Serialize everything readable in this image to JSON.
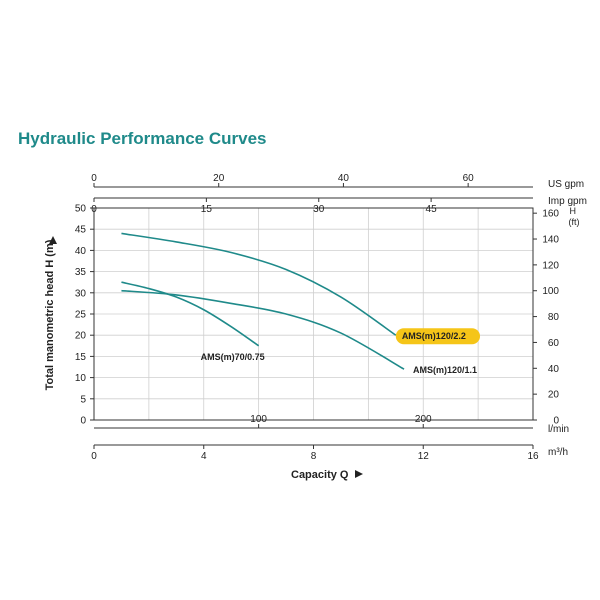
{
  "title": "Hydraulic Performance Curves",
  "colors": {
    "curve": "#1f8a8a",
    "highlight": "#f5c518",
    "grid": "#cfcfcf",
    "axis": "#333333"
  },
  "chart_data": {
    "type": "line",
    "title": "Hydraulic Performance Curves",
    "xlabel": "Capacity Q",
    "ylabel": "Total manometric head H (m)",
    "grid": true,
    "axes": {
      "m3h": {
        "label": "m³/h",
        "ticks": [
          0,
          4,
          8,
          12,
          16
        ],
        "range": [
          0,
          16
        ]
      },
      "lmin": {
        "label": "l/min",
        "ticks": [
          100,
          200
        ],
        "range": [
          0,
          266.67
        ]
      },
      "usgpm": {
        "label": "US gpm",
        "ticks": [
          0,
          20,
          40,
          60
        ],
        "range": [
          0,
          70.4
        ]
      },
      "impgpm": {
        "label": "Imp gpm",
        "ticks": [
          0,
          15,
          30,
          45
        ],
        "range": [
          0,
          58.6
        ]
      },
      "head_m": {
        "label": "",
        "ticks": [
          0,
          5,
          10,
          15,
          20,
          25,
          30,
          35,
          40,
          45,
          50
        ],
        "range": [
          0,
          50
        ]
      },
      "head_ft": {
        "label": "H\n(ft)",
        "label_lines": [
          "H",
          "(ft)"
        ],
        "ticks": [
          0,
          20,
          40,
          60,
          80,
          100,
          120,
          140,
          160
        ],
        "range": [
          0,
          164
        ]
      }
    },
    "series": [
      {
        "name": "AMS(m)120/2.2",
        "highlight": true,
        "x": [
          1.0,
          3.0,
          5.0,
          7.0,
          9.0,
          11.0
        ],
        "y": [
          44.0,
          42.0,
          39.5,
          35.5,
          29.0,
          20.0
        ]
      },
      {
        "name": "AMS(m)70/0.75",
        "highlight": false,
        "x": [
          1.0,
          2.0,
          3.0,
          4.0,
          5.0,
          6.0
        ],
        "y": [
          32.5,
          31.0,
          29.0,
          26.0,
          22.0,
          17.5
        ]
      },
      {
        "name": "AMS(m)120/1.1",
        "highlight": false,
        "x": [
          1.0,
          3.0,
          5.0,
          7.0,
          9.0,
          11.3
        ],
        "y": [
          30.5,
          29.5,
          27.5,
          25.0,
          20.5,
          12.0
        ]
      }
    ]
  }
}
